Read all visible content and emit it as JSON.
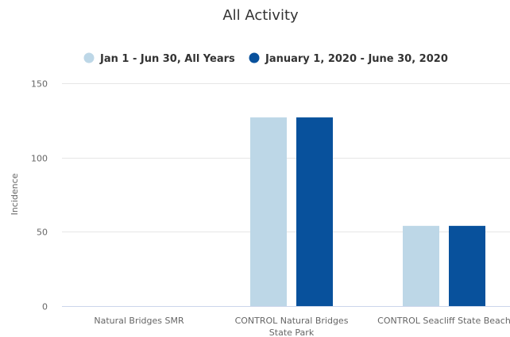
{
  "chart_data": {
    "type": "bar",
    "title": "All Activity",
    "xlabel": "",
    "ylabel": "Incidence",
    "ylim": [
      0,
      150
    ],
    "yticks": [
      0,
      50,
      100,
      150
    ],
    "categories": [
      [
        "Natural Bridges SMR"
      ],
      [
        "CONTROL Natural Bridges",
        "State Park"
      ],
      [
        "CONTROL Seacliff State Beach"
      ]
    ],
    "series": [
      {
        "name": "Jan 1 - Jun 30, All Years",
        "color": "#bdd7e7",
        "values": [
          0,
          127,
          54
        ]
      },
      {
        "name": "January 1, 2020 - June 30, 2020",
        "color": "#08519c",
        "values": [
          0,
          127,
          54
        ]
      }
    ],
    "legend": "top-center",
    "grid": true
  }
}
